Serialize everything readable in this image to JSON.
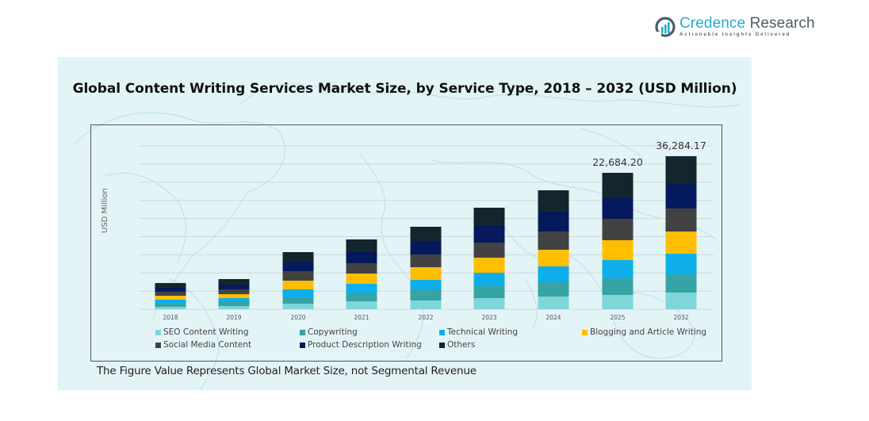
{
  "brand": {
    "name_part1": "Credence",
    "name_part2": " Research",
    "tagline": "Actionable Insights Delivered",
    "icon": "bar-chart-logo-icon"
  },
  "footnote": "The Figure Value Represents Global Market Size, not Segmental Revenue",
  "chart_data": {
    "type": "bar",
    "stacked": true,
    "title": "Global Content Writing Services Market Size, by Service Type, 2018 – 2032 (USD Million)",
    "xlabel": "",
    "ylabel": "USD Million",
    "grid": true,
    "legend_position": "bottom",
    "categories": [
      "2018",
      "2019",
      "2020",
      "2021",
      "2022",
      "2023",
      "2024",
      "2025",
      "2032"
    ],
    "total_labels": {
      "2025": "22,684.20",
      "2032": "36,284.17"
    },
    "series": [
      {
        "name": "SEO Content Writing",
        "color": "#7fd6d9",
        "values": [
          396,
          528,
          923,
          1319,
          1451,
          1847,
          2110,
          2374,
          3950
        ]
      },
      {
        "name": "Copywriting",
        "color": "#36a3a5",
        "values": [
          528,
          660,
          1055,
          1319,
          1715,
          1979,
          2374,
          2770,
          4324
        ]
      },
      {
        "name": "Technical Writing",
        "color": "#0eaeea",
        "values": [
          660,
          660,
          1319,
          1583,
          1715,
          2242,
          2638,
          3034,
          4888
        ]
      },
      {
        "name": "Blogging and Article Writing",
        "color": "#ffbf00",
        "values": [
          660,
          660,
          1451,
          1715,
          2110,
          2506,
          2770,
          3297,
          5264
        ]
      },
      {
        "name": "Social Media Content",
        "color": "#424242",
        "values": [
          660,
          791,
          1583,
          1715,
          2110,
          2506,
          3034,
          3561,
          5452
        ]
      },
      {
        "name": "Product Description Writing",
        "color": "#041a5c",
        "values": [
          660,
          791,
          1583,
          1979,
          2242,
          2902,
          3297,
          3561,
          6016
        ]
      },
      {
        "name": "Others",
        "color": "#13262e",
        "values": [
          791,
          923,
          1583,
          1979,
          2374,
          2902,
          3561,
          4088,
          6390
        ]
      }
    ],
    "totals": [
      4355,
      5013,
      9497,
      11609,
      13717,
      16884,
      19784,
      22684.2,
      36284.17
    ]
  }
}
